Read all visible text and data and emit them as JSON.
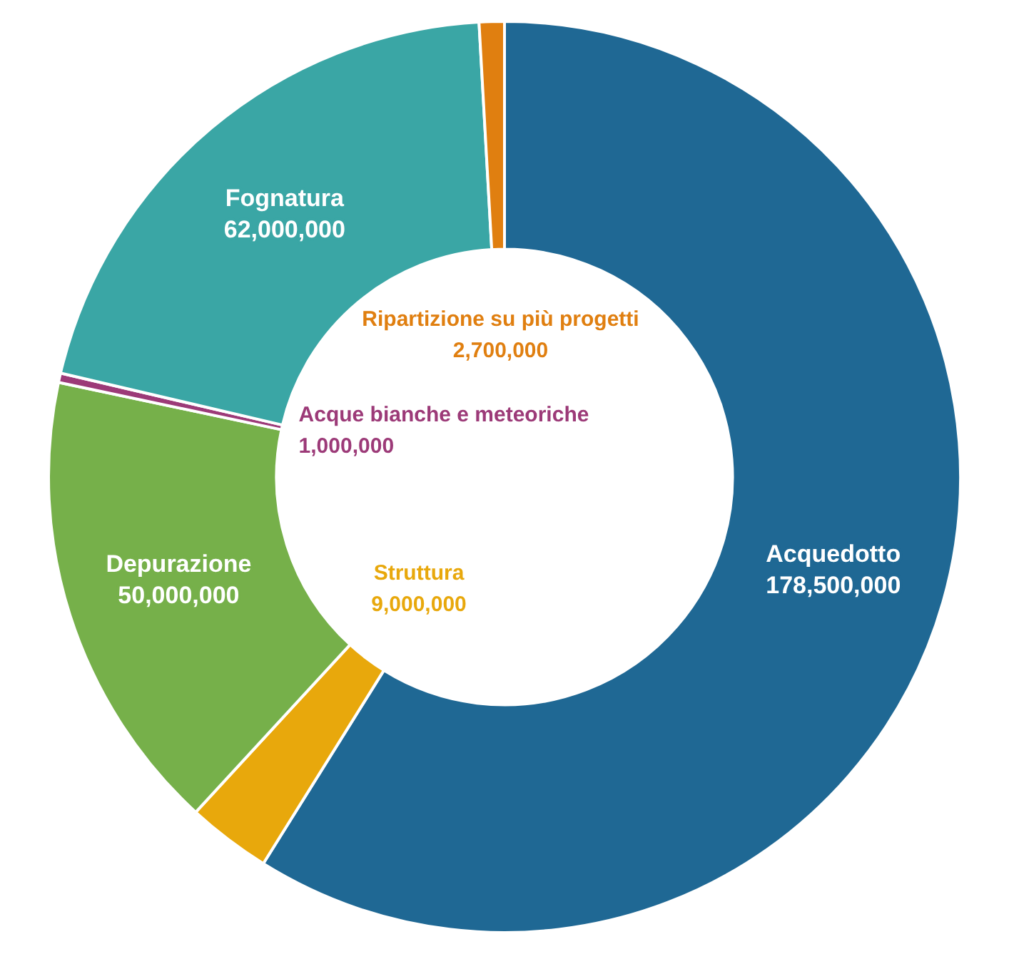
{
  "chart_data": {
    "type": "donut",
    "categories": [
      "Acquedotto",
      "Struttura",
      "Depurazione",
      "Acque bianche e meteoriche",
      "Fognatura",
      "Ripartizione su più progetti"
    ],
    "values": [
      178500000,
      9000000,
      50000000,
      1000000,
      62000000,
      2700000
    ],
    "colors": [
      "#1f6894",
      "#e8a80c",
      "#76b04a",
      "#9c3a78",
      "#3aa6a5",
      "#e07f10"
    ],
    "value_labels": [
      "178,500,000",
      "9,000,000",
      "50,000,000",
      "1,000,000",
      "62,000,000",
      "2,700,000"
    ],
    "legend": false
  }
}
